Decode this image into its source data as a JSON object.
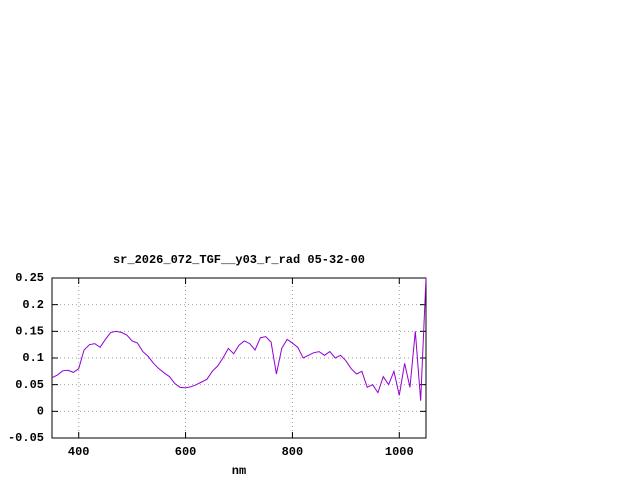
{
  "chart_data": {
    "type": "line",
    "title": "sr_2026_072_TGF__y03_r_rad 05-32-00",
    "x_label": "nm",
    "x": [
      350,
      360,
      370,
      380,
      390,
      400,
      410,
      420,
      430,
      440,
      450,
      460,
      470,
      480,
      490,
      500,
      510,
      520,
      530,
      540,
      550,
      560,
      570,
      580,
      590,
      600,
      610,
      620,
      630,
      640,
      650,
      660,
      670,
      680,
      690,
      700,
      710,
      720,
      730,
      740,
      750,
      760,
      770,
      780,
      790,
      800,
      810,
      820,
      830,
      840,
      850,
      860,
      870,
      880,
      890,
      900,
      910,
      920,
      930,
      940,
      950,
      960,
      970,
      980,
      990,
      1000,
      1010,
      1020,
      1030,
      1040,
      1050
    ],
    "series": [
      {
        "name": "sr_2026_072_TGF__y03_r_rad",
        "color": "#9400d3",
        "values": [
          0.063,
          0.068,
          0.076,
          0.077,
          0.073,
          0.08,
          0.115,
          0.125,
          0.127,
          0.12,
          0.135,
          0.148,
          0.15,
          0.148,
          0.143,
          0.132,
          0.128,
          0.112,
          0.103,
          0.09,
          0.08,
          0.072,
          0.065,
          0.052,
          0.045,
          0.044,
          0.046,
          0.05,
          0.055,
          0.06,
          0.075,
          0.085,
          0.1,
          0.118,
          0.108,
          0.124,
          0.132,
          0.127,
          0.115,
          0.138,
          0.14,
          0.13,
          0.07,
          0.118,
          0.135,
          0.128,
          0.12,
          0.1,
          0.105,
          0.11,
          0.112,
          0.105,
          0.112,
          0.1,
          0.105,
          0.095,
          0.08,
          0.07,
          0.075,
          0.045,
          0.05,
          0.035,
          0.065,
          0.05,
          0.075,
          0.03,
          0.09,
          0.045,
          0.15,
          0.02,
          0.25
        ]
      }
    ],
    "xlim": [
      350,
      1050
    ],
    "xticks": [
      400,
      600,
      800,
      1000
    ],
    "ylim": [
      -0.05,
      0.25
    ],
    "yticks": [
      -0.05,
      0,
      0.05,
      0.1,
      0.15,
      0.2,
      0.25
    ],
    "grid": true
  }
}
